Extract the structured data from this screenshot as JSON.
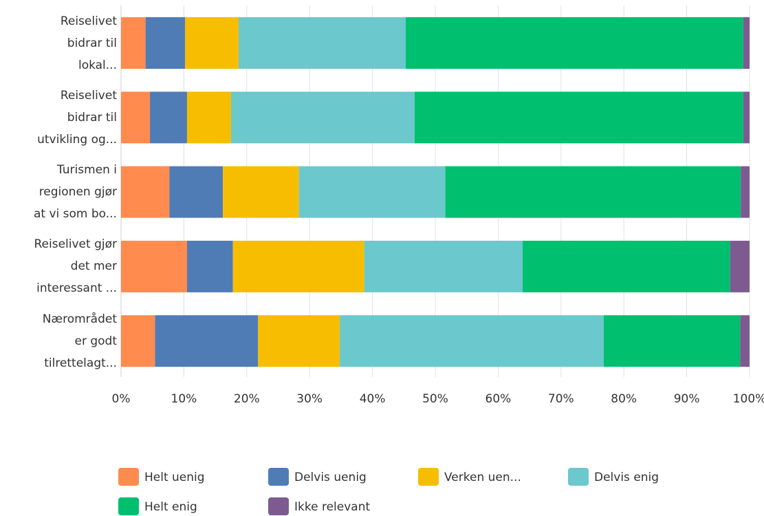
{
  "chart_data": {
    "type": "stacked_bar_horizontal",
    "categories": [
      "Reiselivet bidrar til lokal...",
      "Reiselivet bidrar til utvikling og...",
      "Turismen i regionen gjør at vi som bo...",
      "Reiselivet gjør det mer interessant ...",
      "Nærområdet er godt tilrettelagt..."
    ],
    "series": [
      {
        "name": "Helt uenig",
        "color": "#ff8b4f",
        "values": [
          3.9,
          4.6,
          7.7,
          10.5,
          5.4
        ]
      },
      {
        "name": "Delvis uenig",
        "color": "#507cb6",
        "values": [
          6.3,
          5.9,
          8.5,
          7.3,
          16.4
        ]
      },
      {
        "name": "Verken uen...",
        "color": "#f7bd00",
        "values": [
          8.5,
          7.0,
          12.1,
          20.9,
          13.0
        ]
      },
      {
        "name": "Delvis enig",
        "color": "#6bc8cd",
        "values": [
          26.6,
          29.2,
          23.3,
          25.2,
          42.0
        ]
      },
      {
        "name": "Helt enig",
        "color": "#00bf6f",
        "values": [
          53.7,
          52.3,
          47.0,
          33.0,
          21.7
        ]
      },
      {
        "name": "Ikke relevant",
        "color": "#7d5b91",
        "values": [
          1.0,
          1.0,
          1.4,
          3.1,
          1.5
        ]
      }
    ],
    "xlim": [
      0,
      100
    ],
    "xticks": [
      {
        "value": 0,
        "label": "0%"
      },
      {
        "value": 10,
        "label": "10%"
      },
      {
        "value": 20,
        "label": "20%"
      },
      {
        "value": 30,
        "label": "30%"
      },
      {
        "value": 40,
        "label": "40%"
      },
      {
        "value": 50,
        "label": "50%"
      },
      {
        "value": 60,
        "label": "60%"
      },
      {
        "value": 70,
        "label": "70%"
      },
      {
        "value": 80,
        "label": "80%"
      },
      {
        "value": 90,
        "label": "90%"
      },
      {
        "value": 100,
        "label": "100%"
      }
    ],
    "grid": true,
    "legend": "bottom"
  }
}
